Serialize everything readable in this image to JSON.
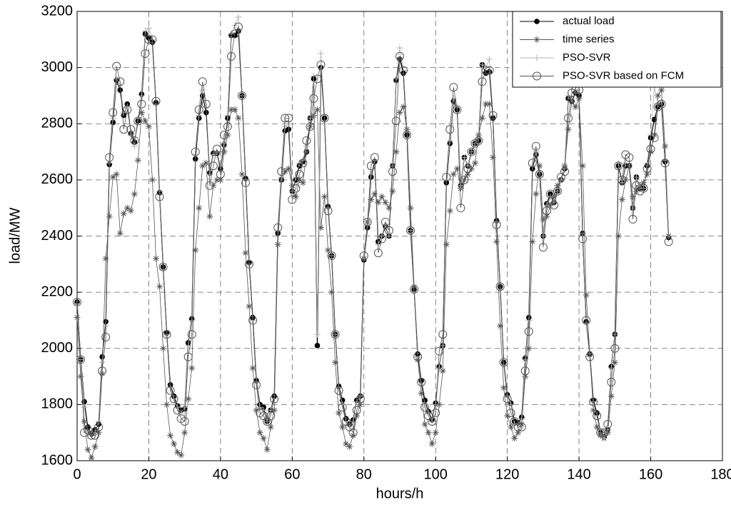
{
  "chart_data": {
    "type": "line",
    "xlabel": "hours/h",
    "ylabel": "load/MW",
    "xlim": [
      0,
      180
    ],
    "xticks": [
      0,
      20,
      40,
      60,
      80,
      100,
      120,
      140,
      160,
      180
    ],
    "ylim": [
      1600,
      3200
    ],
    "yticks": [
      1600,
      1800,
      2000,
      2200,
      2400,
      2600,
      2800,
      3000,
      3200
    ],
    "grid": true,
    "legend": "upper right",
    "x": [
      0,
      1,
      2,
      3,
      4,
      5,
      6,
      7,
      8,
      9,
      10,
      11,
      12,
      13,
      14,
      15,
      16,
      17,
      18,
      19,
      20,
      21,
      22,
      23,
      24,
      25,
      26,
      27,
      28,
      29,
      30,
      31,
      32,
      33,
      34,
      35,
      36,
      37,
      38,
      39,
      40,
      41,
      42,
      43,
      44,
      45,
      46,
      47,
      48,
      49,
      50,
      51,
      52,
      53,
      54,
      55,
      56,
      57,
      58,
      59,
      60,
      61,
      62,
      63,
      64,
      65,
      66,
      67,
      68,
      69,
      70,
      71,
      72,
      73,
      74,
      75,
      76,
      77,
      78,
      79,
      80,
      81,
      82,
      83,
      84,
      85,
      86,
      87,
      88,
      89,
      90,
      91,
      92,
      93,
      94,
      95,
      96,
      97,
      98,
      99,
      100,
      101,
      102,
      103,
      104,
      105,
      106,
      107,
      108,
      109,
      110,
      111,
      112,
      113,
      114,
      115,
      116,
      117,
      118,
      119,
      120,
      121,
      122,
      123,
      124,
      125,
      126,
      127,
      128,
      129,
      130,
      131,
      132,
      133,
      134,
      135,
      136,
      137,
      138,
      139,
      140,
      141,
      142,
      143,
      144,
      145,
      146,
      147,
      148,
      149,
      150,
      151,
      152,
      153,
      154,
      155,
      156,
      157,
      158,
      159,
      160,
      161,
      162,
      163,
      164,
      165
    ],
    "series": [
      {
        "name": "actual load",
        "color": "#000000",
        "marker": "dot",
        "values": [
          2165,
          1960,
          1810,
          1720,
          1695,
          1710,
          1730,
          1970,
          2095,
          2655,
          2805,
          2955,
          2920,
          2830,
          2870,
          2765,
          2735,
          2810,
          2905,
          3120,
          3105,
          3090,
          2875,
          2555,
          2290,
          2055,
          1870,
          1830,
          1795,
          1780,
          1785,
          2020,
          2105,
          2675,
          2820,
          2900,
          2840,
          2625,
          2695,
          2695,
          2640,
          2725,
          2820,
          3115,
          3115,
          3130,
          2900,
          2605,
          2305,
          2110,
          1885,
          1800,
          1790,
          1740,
          1780,
          1830,
          2410,
          2600,
          2775,
          2780,
          2560,
          2600,
          2650,
          2665,
          2700,
          2820,
          2960,
          2010,
          3000,
          2820,
          2505,
          2330,
          2050,
          1865,
          1815,
          1750,
          1730,
          1745,
          1815,
          1830,
          2315,
          2430,
          2610,
          2665,
          2380,
          2400,
          2435,
          2400,
          2650,
          2955,
          3030,
          2980,
          2760,
          2420,
          2210,
          1980,
          1885,
          1815,
          1775,
          1745,
          1805,
          1935,
          2010,
          2590,
          2730,
          2880,
          2850,
          2580,
          2680,
          2650,
          2700,
          2730,
          2740,
          3010,
          2980,
          2985,
          2820,
          2455,
          2220,
          1950,
          1835,
          1805,
          1740,
          1735,
          1755,
          1965,
          2110,
          2640,
          2690,
          2620,
          2400,
          2515,
          2550,
          2520,
          2560,
          2600,
          2640,
          2890,
          2880,
          2910,
          2900,
          2410,
          2095,
          1980,
          1815,
          1770,
          1700,
          1685,
          1710,
          1935,
          2050,
          2650,
          2590,
          2650,
          2650,
          2500,
          2610,
          2570,
          2570,
          2650,
          2750,
          2815,
          2860,
          2870,
          2665,
          2395
        ]
      },
      {
        "name": "time series",
        "color": "#555555",
        "marker": "star",
        "values": [
          2110,
          1900,
          1740,
          1640,
          1610,
          1650,
          1700,
          1910,
          2320,
          2470,
          2610,
          2620,
          2410,
          2480,
          2500,
          2490,
          2550,
          2670,
          2840,
          2810,
          2790,
          2600,
          2320,
          2220,
          2000,
          1800,
          1690,
          1660,
          1630,
          1620,
          1700,
          1820,
          1930,
          2350,
          2500,
          2650,
          2660,
          2470,
          2580,
          2600,
          2600,
          2700,
          2760,
          2850,
          2850,
          2820,
          2620,
          2340,
          2150,
          1930,
          1780,
          1700,
          1680,
          1640,
          1720,
          1780,
          2370,
          2600,
          2630,
          2640,
          2580,
          2540,
          2600,
          2590,
          2700,
          2790,
          2830,
          2850,
          2430,
          2540,
          2350,
          2200,
          1950,
          1770,
          1720,
          1660,
          1650,
          1690,
          1760,
          1800,
          2320,
          2450,
          2530,
          2550,
          2520,
          2540,
          2520,
          2500,
          2560,
          2700,
          2840,
          2860,
          2780,
          2500,
          2220,
          1960,
          1840,
          1730,
          1700,
          1660,
          1700,
          1800,
          1920,
          2370,
          2490,
          2620,
          2640,
          2570,
          2600,
          2620,
          2640,
          2660,
          2760,
          2820,
          2870,
          2870,
          2680,
          2380,
          2080,
          1860,
          1760,
          1720,
          1680,
          1700,
          1730,
          1900,
          2000,
          2380,
          2550,
          2650,
          2460,
          2470,
          2510,
          2540,
          2580,
          2600,
          2650,
          2780,
          2880,
          2860,
          2890,
          2650,
          2190,
          1980,
          1780,
          1720,
          1690,
          1680,
          1700,
          1830,
          1950,
          2400,
          2530,
          2600,
          2650,
          2540,
          2560,
          2580,
          2590,
          2620,
          2700,
          2760,
          2900,
          2920,
          2720,
          2400
        ]
      },
      {
        "name": "PSO-SVR",
        "color": "#b0b0b0",
        "marker": "plus",
        "values": [
          2160,
          1960,
          1790,
          1700,
          1690,
          1700,
          1740,
          1950,
          2080,
          2660,
          2820,
          2960,
          2940,
          2840,
          2860,
          2760,
          2720,
          2820,
          2900,
          3130,
          3140,
          3100,
          2870,
          2560,
          2280,
          2050,
          1860,
          1820,
          1790,
          1770,
          1790,
          2010,
          2100,
          2690,
          2830,
          2920,
          2860,
          2620,
          2690,
          2700,
          2650,
          2730,
          2830,
          3120,
          3150,
          3180,
          2900,
          2600,
          2300,
          2100,
          1880,
          1790,
          1780,
          1740,
          1780,
          1820,
          2420,
          2610,
          2790,
          2800,
          2560,
          2610,
          2660,
          2670,
          2720,
          2820,
          2970,
          2050,
          3050,
          2830,
          2500,
          2330,
          2050,
          1860,
          1800,
          1740,
          1720,
          1740,
          1810,
          1830,
          2320,
          2440,
          2620,
          2670,
          2370,
          2400,
          2440,
          2400,
          2650,
          2960,
          3070,
          2990,
          2770,
          2420,
          2200,
          1970,
          1870,
          1800,
          1770,
          1740,
          1800,
          1930,
          2010,
          2600,
          2740,
          2890,
          2860,
          2580,
          2680,
          2650,
          2700,
          2730,
          2750,
          3010,
          3000,
          3030,
          2830,
          2450,
          2210,
          1940,
          1830,
          1800,
          1730,
          1730,
          1750,
          1960,
          2100,
          2650,
          2700,
          2630,
          2400,
          2510,
          2540,
          2520,
          2560,
          2600,
          2640,
          2900,
          2890,
          2920,
          2910,
          2410,
          2090,
          1970,
          1810,
          1760,
          1700,
          1680,
          1710,
          1930,
          2050,
          2660,
          2590,
          2660,
          2660,
          2500,
          2610,
          2570,
          2570,
          2660,
          2760,
          2930,
          2870,
          2880,
          2670,
          2400
        ]
      },
      {
        "name": "PSO-SVR based on FCM",
        "color": "#555555",
        "marker": "circle",
        "values": [
          2165,
          1960,
          1700,
          1710,
          1690,
          1690,
          1720,
          1920,
          2040,
          2680,
          2840,
          3005,
          2950,
          2780,
          2850,
          2780,
          2740,
          2810,
          2870,
          3050,
          3100,
          3100,
          2880,
          2540,
          2290,
          2050,
          1850,
          1820,
          1780,
          1750,
          1740,
          1970,
          2050,
          2700,
          2850,
          2950,
          2870,
          2580,
          2650,
          2710,
          2620,
          2760,
          2790,
          3040,
          3120,
          3145,
          2900,
          2590,
          2300,
          2100,
          1870,
          1770,
          1760,
          1740,
          1760,
          1820,
          2430,
          2630,
          2820,
          2820,
          2530,
          2570,
          2620,
          2660,
          2740,
          2790,
          2890,
          2960,
          3010,
          2820,
          2490,
          2330,
          2050,
          1850,
          1790,
          1740,
          1720,
          1700,
          1780,
          1820,
          2330,
          2450,
          2650,
          2680,
          2340,
          2390,
          2450,
          2420,
          2630,
          2810,
          3040,
          2990,
          2760,
          2420,
          2210,
          1970,
          1880,
          1790,
          1760,
          1740,
          1770,
          1990,
          2050,
          2610,
          2780,
          2930,
          2850,
          2500,
          2600,
          2640,
          2700,
          2730,
          2740,
          2950,
          2990,
          2990,
          2830,
          2440,
          2220,
          1950,
          1820,
          1770,
          1740,
          1720,
          1720,
          1920,
          2060,
          2660,
          2720,
          2620,
          2360,
          2490,
          2550,
          2510,
          2560,
          2610,
          2630,
          2820,
          2910,
          2920,
          2920,
          2390,
          2100,
          1970,
          1810,
          1760,
          1700,
          1700,
          1730,
          1880,
          2000,
          2650,
          2600,
          2690,
          2680,
          2460,
          2580,
          2560,
          2570,
          2640,
          2710,
          2750,
          2860,
          2870,
          2660,
          2380
        ]
      }
    ]
  }
}
